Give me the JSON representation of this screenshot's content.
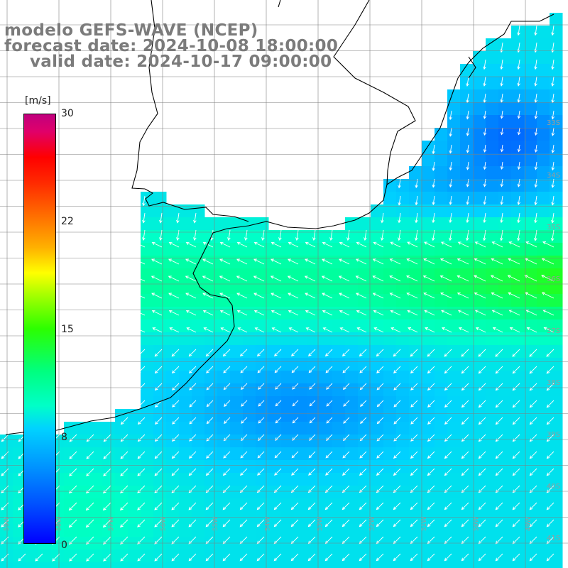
{
  "title": {
    "line1": "modelo GEFS-WAVE (NCEP)",
    "line2": "forecast date: 2024-10-08 18:00:00",
    "line3": "valid date: 2024-10-17 09:00:00"
  },
  "colorbar": {
    "unit": "[m/s]",
    "ticks": [
      "30",
      "22",
      "15",
      "8",
      "0"
    ],
    "min": 0,
    "max": 30,
    "colors": [
      "#0000ff",
      "#0095ff",
      "#00d2ff",
      "#00ff80",
      "#2cff00",
      "#ffff00",
      "#ff7a00",
      "#ff0000",
      "#c0007e"
    ]
  },
  "lat_labels": [
    "33S",
    "34S",
    "35S",
    "36S",
    "37S",
    "38S",
    "39S",
    "40S",
    "41S"
  ],
  "lon_labels": [
    "59W",
    "58W",
    "57W",
    "56W",
    "55W",
    "54W",
    "53W",
    "52W",
    "51W",
    "50W",
    "49W"
  ],
  "colors": {
    "land": "#ffffff",
    "grid": "#808080",
    "coast": "#000000",
    "arrow": "#ffffff",
    "title": "#7b7b7b"
  }
}
